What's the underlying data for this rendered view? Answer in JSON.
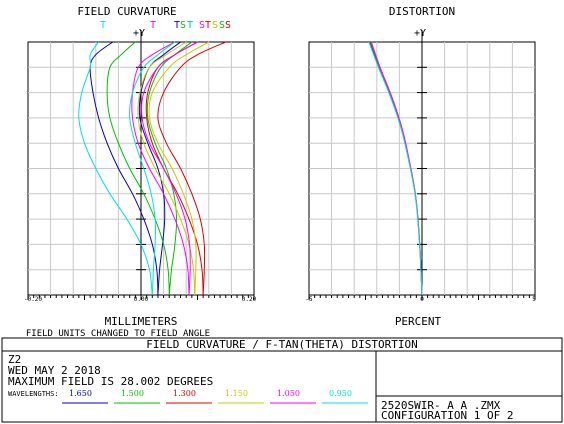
{
  "header": {
    "left_title": "FIELD CURVATURE",
    "right_title": "DISTORTION",
    "y_axis_label": "+Y"
  },
  "chart_data": [
    {
      "type": "line",
      "title": "FIELD CURVATURE",
      "xlabel": "MILLIMETERS",
      "xlim": [
        -0.2,
        0.2
      ],
      "ylim": [
        0,
        1
      ],
      "x_ticks": [
        "-0.20",
        "0.00",
        "0.20"
      ],
      "note": "FIELD UNITS CHANGED TO FIELD ANGLE",
      "legend_labels": [
        {
          "text": "T",
          "color": "#00e0e0"
        },
        {
          "text": "T",
          "color": "#ff00ff"
        },
        {
          "text": "T",
          "color": "#0000ff"
        },
        {
          "text": "S",
          "color": "#00c000"
        },
        {
          "text": "T",
          "color": "#00c0c0"
        },
        {
          "text": "S",
          "color": "#ff00ff"
        },
        {
          "text": "T",
          "color": "#e00000"
        },
        {
          "text": "S",
          "color": "#c0c000"
        },
        {
          "text": "S",
          "color": "#00c000"
        },
        {
          "text": "S",
          "color": "#e00000"
        }
      ],
      "series": [
        {
          "wavelength": "1.650",
          "type": "T",
          "color": "#0000c8",
          "y": [
            0,
            0.1,
            0.2,
            0.3,
            0.4,
            0.5,
            0.6,
            0.7,
            0.8,
            0.9,
            0.95,
            1.0
          ],
          "x": [
            0.03,
            0.028,
            0.02,
            0.005,
            -0.015,
            -0.04,
            -0.06,
            -0.075,
            -0.085,
            -0.09,
            -0.08,
            -0.05
          ]
        },
        {
          "wavelength": "1.650",
          "type": "S",
          "color": "#0000c8",
          "y": [
            0,
            0.1,
            0.2,
            0.3,
            0.4,
            0.5,
            0.6,
            0.7,
            0.8,
            0.9,
            0.95,
            1.0
          ],
          "x": [
            0.03,
            0.033,
            0.038,
            0.042,
            0.04,
            0.03,
            0.012,
            -0.002,
            0.0,
            0.015,
            0.04,
            0.07
          ]
        },
        {
          "wavelength": "1.500",
          "type": "T",
          "color": "#00c000",
          "y": [
            0,
            0.1,
            0.2,
            0.3,
            0.4,
            0.5,
            0.6,
            0.7,
            0.8,
            0.9,
            0.95,
            1.0
          ],
          "x": [
            0.05,
            0.048,
            0.04,
            0.025,
            0.005,
            -0.02,
            -0.04,
            -0.055,
            -0.06,
            -0.055,
            -0.035,
            -0.01
          ]
        },
        {
          "wavelength": "1.500",
          "type": "S",
          "color": "#00c000",
          "y": [
            0,
            0.1,
            0.2,
            0.3,
            0.4,
            0.5,
            0.6,
            0.7,
            0.8,
            0.9,
            0.95,
            1.0
          ],
          "x": [
            0.05,
            0.054,
            0.06,
            0.063,
            0.058,
            0.045,
            0.025,
            0.012,
            0.015,
            0.035,
            0.06,
            0.09
          ]
        },
        {
          "wavelength": "1.300",
          "type": "T",
          "color": "#e00000",
          "y": [
            0,
            0.1,
            0.2,
            0.3,
            0.4,
            0.5,
            0.6,
            0.7,
            0.8,
            0.9,
            0.95,
            1.0
          ],
          "x": [
            0.11,
            0.108,
            0.1,
            0.085,
            0.065,
            0.04,
            0.02,
            0.01,
            0.012,
            0.03,
            0.06,
            0.1
          ]
        },
        {
          "wavelength": "1.300",
          "type": "S",
          "color": "#e00000",
          "y": [
            0,
            0.1,
            0.2,
            0.3,
            0.4,
            0.5,
            0.6,
            0.7,
            0.8,
            0.9,
            0.95,
            1.0
          ],
          "x": [
            0.11,
            0.112,
            0.112,
            0.105,
            0.09,
            0.07,
            0.045,
            0.03,
            0.04,
            0.07,
            0.1,
            0.15
          ]
        },
        {
          "wavelength": "1.150",
          "type": "T",
          "color": "#c8c800",
          "y": [
            0,
            0.1,
            0.2,
            0.3,
            0.4,
            0.5,
            0.6,
            0.7,
            0.8,
            0.9,
            0.95,
            1.0
          ],
          "x": [
            0.095,
            0.093,
            0.085,
            0.07,
            0.05,
            0.025,
            0.005,
            -0.005,
            -0.002,
            0.015,
            0.045,
            0.08
          ]
        },
        {
          "wavelength": "1.150",
          "type": "S",
          "color": "#c8c800",
          "y": [
            0,
            0.1,
            0.2,
            0.3,
            0.4,
            0.5,
            0.6,
            0.7,
            0.8,
            0.9,
            0.95,
            1.0
          ],
          "x": [
            0.095,
            0.097,
            0.097,
            0.09,
            0.075,
            0.055,
            0.03,
            0.015,
            0.02,
            0.05,
            0.08,
            0.12
          ]
        },
        {
          "wavelength": "1.050",
          "type": "T",
          "color": "#ff00ff",
          "y": [
            0,
            0.1,
            0.2,
            0.3,
            0.4,
            0.5,
            0.6,
            0.7,
            0.8,
            0.9,
            0.95,
            1.0
          ],
          "x": [
            0.085,
            0.083,
            0.075,
            0.06,
            0.04,
            0.015,
            -0.005,
            -0.015,
            -0.015,
            -0.005,
            0.02,
            0.06
          ]
        },
        {
          "wavelength": "1.050",
          "type": "S",
          "color": "#ff00ff",
          "y": [
            0,
            0.1,
            0.2,
            0.3,
            0.4,
            0.5,
            0.6,
            0.7,
            0.8,
            0.9,
            0.95,
            1.0
          ],
          "x": [
            0.085,
            0.087,
            0.086,
            0.078,
            0.062,
            0.04,
            0.015,
            0.002,
            0.005,
            0.03,
            0.06,
            0.1
          ]
        },
        {
          "wavelength": "0.950",
          "type": "T",
          "color": "#00e0e0",
          "y": [
            0,
            0.1,
            0.2,
            0.3,
            0.4,
            0.5,
            0.6,
            0.7,
            0.8,
            0.9,
            0.95,
            1.0
          ],
          "x": [
            0.02,
            0.015,
            0.0,
            -0.025,
            -0.055,
            -0.08,
            -0.1,
            -0.11,
            -0.105,
            -0.09,
            -0.09,
            -0.075
          ]
        },
        {
          "wavelength": "0.950",
          "type": "S",
          "color": "#00e0e0",
          "y": [
            0,
            0.1,
            0.2,
            0.3,
            0.4,
            0.5,
            0.6,
            0.7,
            0.8,
            0.9,
            0.95,
            1.0
          ],
          "x": [
            0.02,
            0.022,
            0.025,
            0.025,
            0.018,
            0.005,
            -0.01,
            -0.02,
            -0.015,
            0.005,
            0.03,
            0.06
          ]
        }
      ]
    },
    {
      "type": "line",
      "title": "DISTORTION",
      "xlabel": "PERCENT",
      "xlim": [
        -5,
        5
      ],
      "ylim": [
        0,
        1
      ],
      "x_ticks": [
        "-5",
        "0",
        "5"
      ],
      "series": [
        {
          "wavelength": "1.650",
          "color": "#0000c8",
          "y": [
            0,
            0.2,
            0.4,
            0.6,
            0.7,
            0.8,
            0.9,
            1.0
          ],
          "x": [
            0,
            -0.1,
            -0.3,
            -0.75,
            -1.05,
            -1.45,
            -1.9,
            -2.3
          ]
        },
        {
          "wavelength": "1.500",
          "color": "#00c000",
          "y": [
            0,
            0.2,
            0.4,
            0.6,
            0.7,
            0.8,
            0.9,
            1.0
          ],
          "x": [
            0,
            -0.1,
            -0.3,
            -0.74,
            -1.04,
            -1.43,
            -1.88,
            -2.28
          ]
        },
        {
          "wavelength": "1.300",
          "color": "#e00000",
          "y": [
            0,
            0.2,
            0.4,
            0.6,
            0.7,
            0.8,
            0.9,
            1.0
          ],
          "x": [
            0,
            -0.1,
            -0.29,
            -0.73,
            -1.02,
            -1.41,
            -1.86,
            -2.25
          ]
        },
        {
          "wavelength": "1.150",
          "color": "#c8c800",
          "y": [
            0,
            0.2,
            0.4,
            0.6,
            0.7,
            0.8,
            0.9,
            1.0
          ],
          "x": [
            0,
            -0.1,
            -0.29,
            -0.72,
            -1.01,
            -1.4,
            -1.85,
            -2.23
          ]
        },
        {
          "wavelength": "1.050",
          "color": "#ff00ff",
          "y": [
            0,
            0.2,
            0.4,
            0.6,
            0.7,
            0.8,
            0.9,
            1.0
          ],
          "x": [
            0,
            -0.1,
            -0.3,
            -0.72,
            -1.02,
            -1.41,
            -1.86,
            -2.25
          ]
        },
        {
          "wavelength": "0.950",
          "color": "#00e0e0",
          "y": [
            0,
            0.2,
            0.4,
            0.6,
            0.7,
            0.8,
            0.9,
            1.0
          ],
          "x": [
            0,
            -0.11,
            -0.31,
            -0.76,
            -1.07,
            -1.47,
            -1.93,
            -2.35
          ]
        }
      ]
    }
  ],
  "footer": {
    "title_bar": "FIELD CURVATURE / F-TAN(THETA) DISTORTION",
    "lines": [
      "Z2",
      "WED MAY 2 2018",
      "MAXIMUM FIELD IS 28.002 DEGREES"
    ],
    "wavelengths_label": "WAVELENGTHS:",
    "wavelengths": [
      {
        "value": "1.650",
        "color": "#0000c8"
      },
      {
        "value": "1.500",
        "color": "#00c000"
      },
      {
        "value": "1.300",
        "color": "#e00000"
      },
      {
        "value": "1.150",
        "color": "#c8c800"
      },
      {
        "value": "1.050",
        "color": "#ff00ff"
      },
      {
        "value": "0.950",
        "color": "#00e0e0"
      }
    ],
    "file_name": "2520SWIR- A  A .ZMX",
    "configuration": "CONFIGURATION 1 OF 2"
  }
}
